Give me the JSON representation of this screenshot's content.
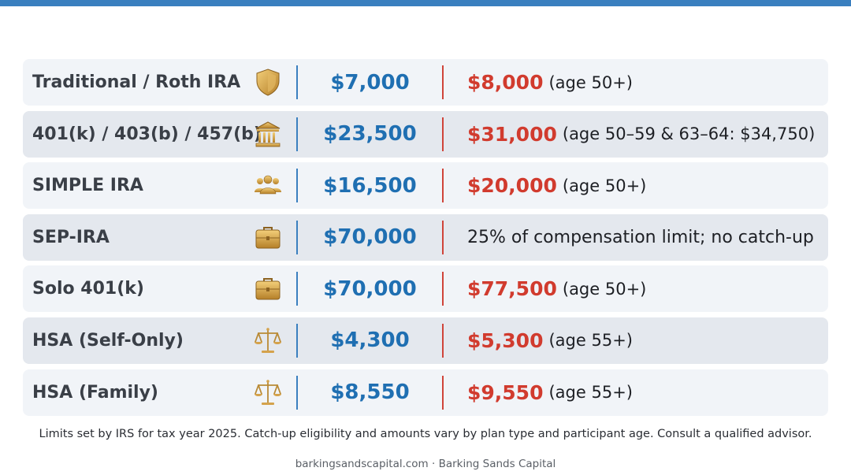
{
  "rows": [
    {
      "plan": "Traditional / Roth IRA",
      "icon": "shield-icon",
      "limit": "$7,000",
      "catchup_amount": "$8,000",
      "catchup_note": "(age 50+)",
      "catchup_text": ""
    },
    {
      "plan": "401(k) / 403(b) / 457(b)",
      "icon": "bank-icon",
      "limit": "$23,500",
      "catchup_amount": "$31,000",
      "catchup_note": "(age 50–59 & 63–64: $34,750)",
      "catchup_text": ""
    },
    {
      "plan": "SIMPLE IRA",
      "icon": "people-icon",
      "limit": "$16,500",
      "catchup_amount": "$20,000",
      "catchup_note": "(age 50+)",
      "catchup_text": ""
    },
    {
      "plan": "SEP-IRA",
      "icon": "briefcase-icon",
      "limit": "$70,000",
      "catchup_amount": "",
      "catchup_note": "",
      "catchup_text": "25% of compensation limit; no catch-up"
    },
    {
      "plan": "Solo 401(k)",
      "icon": "briefcase-icon",
      "limit": "$70,000",
      "catchup_amount": "$77,500",
      "catchup_note": "(age 50+)",
      "catchup_text": ""
    },
    {
      "plan": "HSA (Self-Only)",
      "icon": "scales-icon",
      "limit": "$4,300",
      "catchup_amount": "$5,300",
      "catchup_note": "(age 55+)",
      "catchup_text": ""
    },
    {
      "plan": "HSA (Family)",
      "icon": "scales-icon",
      "limit": "$8,550",
      "catchup_amount": "$9,550",
      "catchup_note": "(age 55+)",
      "catchup_text": ""
    }
  ],
  "footnote": "Limits set by IRS for tax year 2025. Catch-up eligibility and amounts vary by plan type and participant age. Consult a qualified advisor.",
  "source": "barkingsandscapital.com · Barking Sands Capital",
  "colors": {
    "accent_blue": "#1f6fb2",
    "accent_red": "#d13b2e",
    "icon_gold": "#d4a24c"
  }
}
